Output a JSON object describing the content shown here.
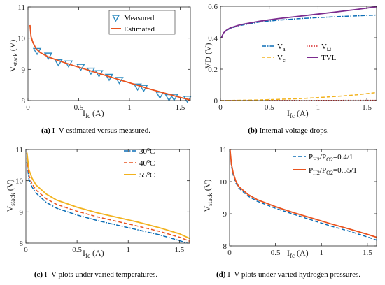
{
  "chart_data": [
    {
      "type": "line",
      "caption": {
        "label": "(a)",
        "text": " I–V estimated versus measured."
      },
      "ylabel_main": "V",
      "ylabel_sub": "stack",
      "ylabel_unit": " (V)",
      "xlabel_main": "I",
      "xlabel_sub": "fc",
      "xlabel_unit": " (A)",
      "xlim": [
        0,
        1.6
      ],
      "ylim": [
        8,
        11
      ],
      "xticks": [
        0,
        0.5,
        1,
        1.5
      ],
      "xtick_labels": [
        "0",
        "0.5",
        "1",
        "1.5"
      ],
      "yticks": [
        8,
        9,
        10,
        11
      ],
      "ytick_labels": [
        "8",
        "9",
        "10",
        "11"
      ],
      "legend": "top-right",
      "series": [
        {
          "name": "Measured",
          "style": "markers",
          "marker": "triangle-down",
          "color": "#2e8bc0",
          "x": [
            0.09,
            0.2,
            0.3,
            0.4,
            0.52,
            0.62,
            0.7,
            0.8,
            0.9,
            1.08,
            1.14,
            1.3,
            1.39,
            1.44,
            1.57
          ],
          "y": [
            9.58,
            9.43,
            9.22,
            9.18,
            9.07,
            8.95,
            8.87,
            8.75,
            8.65,
            8.44,
            8.4,
            8.18,
            8.1,
            8.11,
            8.05
          ]
        },
        {
          "name": "Estimated",
          "style": "solid",
          "color": "#e9531f",
          "x": [
            0.02,
            0.03,
            0.05,
            0.08,
            0.12,
            0.2,
            0.3,
            0.4,
            0.5,
            0.6,
            0.7,
            0.8,
            0.9,
            1.0,
            1.1,
            1.2,
            1.3,
            1.4,
            1.5,
            1.6
          ],
          "y": [
            10.42,
            10.05,
            9.85,
            9.66,
            9.54,
            9.4,
            9.28,
            9.17,
            9.07,
            8.97,
            8.87,
            8.77,
            8.67,
            8.57,
            8.47,
            8.37,
            8.28,
            8.19,
            8.1,
            8.02
          ]
        }
      ]
    },
    {
      "type": "line",
      "caption": {
        "label": "(b)",
        "text": " Internal voltage drops."
      },
      "ylabel_main": "VD (V)",
      "ylabel_sub": "",
      "ylabel_unit": "",
      "xlabel_main": "I",
      "xlabel_sub": "fc",
      "xlabel_unit": " (A)",
      "xlim": [
        0,
        1.6
      ],
      "ylim": [
        0,
        0.6
      ],
      "xticks": [
        0,
        0.5,
        1,
        1.5
      ],
      "xtick_labels": [
        "0",
        "0.5",
        "1",
        "1.5"
      ],
      "yticks": [
        0,
        0.2,
        0.4,
        0.6
      ],
      "ytick_labels": [
        "0",
        "0.2",
        "0.4",
        "0.6"
      ],
      "legend": "center-right",
      "series": [
        {
          "name": "V",
          "sub": "a",
          "style": "dashdot",
          "color": "#0b6db5",
          "x": [
            0.01,
            0.03,
            0.06,
            0.1,
            0.2,
            0.4,
            0.6,
            0.8,
            1.0,
            1.2,
            1.4,
            1.6
          ],
          "y": [
            0.4,
            0.43,
            0.445,
            0.46,
            0.478,
            0.5,
            0.512,
            0.521,
            0.528,
            0.534,
            0.539,
            0.544
          ]
        },
        {
          "name": "V",
          "sub": "Ω",
          "style": "dotted",
          "color": "#d62728",
          "x": [
            0,
            1.6
          ],
          "y": [
            0,
            0.002
          ]
        },
        {
          "name": "V",
          "sub": "c",
          "style": "dashed",
          "color": "#f2b21d",
          "x": [
            0,
            0.4,
            0.8,
            1.0,
            1.2,
            1.4,
            1.6
          ],
          "y": [
            0,
            0.004,
            0.012,
            0.019,
            0.027,
            0.037,
            0.051
          ]
        },
        {
          "name": "TVL",
          "sub": "",
          "style": "solid",
          "color": "#7b2b8e",
          "x": [
            0.01,
            0.03,
            0.06,
            0.1,
            0.2,
            0.4,
            0.6,
            0.8,
            1.0,
            1.2,
            1.4,
            1.6
          ],
          "y": [
            0.4,
            0.43,
            0.447,
            0.462,
            0.482,
            0.505,
            0.522,
            0.536,
            0.55,
            0.565,
            0.58,
            0.597
          ]
        }
      ]
    },
    {
      "type": "line",
      "caption": {
        "label": "(c)",
        "text": " I–V plots under varied temperatures."
      },
      "ylabel_main": "V",
      "ylabel_sub": "stack",
      "ylabel_unit": " (V)",
      "xlabel_main": "I",
      "xlabel_sub": "fc",
      "xlabel_unit": " (A)",
      "xlim": [
        0,
        1.6
      ],
      "ylim": [
        8,
        11
      ],
      "xticks": [
        0,
        0.5,
        1,
        1.5
      ],
      "xtick_labels": [
        "0",
        "0.5",
        "1",
        "1.5"
      ],
      "yticks": [
        8,
        9,
        10,
        11
      ],
      "ytick_labels": [
        "8",
        "9",
        "10",
        "11"
      ],
      "legend": "top-right",
      "series": [
        {
          "name": "30",
          "suffix": "C",
          "style": "dashdot",
          "color": "#0b6db5",
          "x": [
            0.01,
            0.03,
            0.06,
            0.1,
            0.2,
            0.3,
            0.5,
            0.7,
            0.9,
            1.1,
            1.3,
            1.5,
            1.6
          ],
          "y": [
            10.6,
            10.05,
            9.8,
            9.6,
            9.3,
            9.12,
            8.9,
            8.72,
            8.57,
            8.42,
            8.27,
            8.08,
            7.97
          ]
        },
        {
          "name": "40",
          "suffix": "C",
          "style": "dashed",
          "color": "#e9531f",
          "x": [
            0.01,
            0.03,
            0.06,
            0.1,
            0.2,
            0.3,
            0.5,
            0.7,
            0.9,
            1.1,
            1.3,
            1.5,
            1.6
          ],
          "y": [
            10.72,
            10.17,
            9.9,
            9.7,
            9.42,
            9.24,
            9.02,
            8.84,
            8.69,
            8.54,
            8.38,
            8.19,
            8.06
          ]
        },
        {
          "name": "55",
          "suffix": "C",
          "style": "solid",
          "color": "#f2b21d",
          "x": [
            0.01,
            0.03,
            0.06,
            0.1,
            0.2,
            0.3,
            0.5,
            0.7,
            0.9,
            1.1,
            1.3,
            1.5,
            1.6
          ],
          "y": [
            10.9,
            10.35,
            10.08,
            9.86,
            9.57,
            9.38,
            9.15,
            8.97,
            8.82,
            8.67,
            8.5,
            8.3,
            8.15
          ]
        }
      ]
    },
    {
      "type": "line",
      "caption": {
        "label": "(d)",
        "text": " I–V plots under varied hydrogen pressures."
      },
      "ylabel_main": "V",
      "ylabel_sub": "stack",
      "ylabel_unit": " (V)",
      "xlabel_main": "I",
      "xlabel_sub": "fc",
      "xlabel_unit": " (A)",
      "xlim": [
        0,
        1.6
      ],
      "ylim": [
        8,
        11
      ],
      "xticks": [
        0,
        0.5,
        1,
        1.5
      ],
      "xtick_labels": [
        "0",
        "0.5",
        "1",
        "1.5"
      ],
      "yticks": [
        8,
        9,
        10,
        11
      ],
      "ytick_labels": [
        "8",
        "9",
        "10",
        "11"
      ],
      "legend": "top-right",
      "series": [
        {
          "name": "/P",
          "ratio": "=0.4/1",
          "style": "dashed",
          "color": "#0b6db5",
          "x": [
            0.005,
            0.02,
            0.04,
            0.07,
            0.1,
            0.2,
            0.3,
            0.5,
            0.7,
            0.9,
            1.1,
            1.3,
            1.5,
            1.6
          ],
          "y": [
            10.98,
            10.5,
            10.2,
            9.95,
            9.8,
            9.55,
            9.39,
            9.17,
            8.98,
            8.8,
            8.62,
            8.46,
            8.28,
            8.18
          ]
        },
        {
          "name": "/P",
          "ratio": "=0.55/1",
          "style": "solid",
          "color": "#e9531f",
          "x": [
            0.005,
            0.02,
            0.04,
            0.07,
            0.1,
            0.2,
            0.3,
            0.5,
            0.7,
            0.9,
            1.1,
            1.3,
            1.5,
            1.6
          ],
          "y": [
            11.0,
            10.55,
            10.26,
            10.0,
            9.85,
            9.6,
            9.44,
            9.22,
            9.03,
            8.86,
            8.69,
            8.53,
            8.36,
            8.27
          ]
        }
      ]
    }
  ]
}
